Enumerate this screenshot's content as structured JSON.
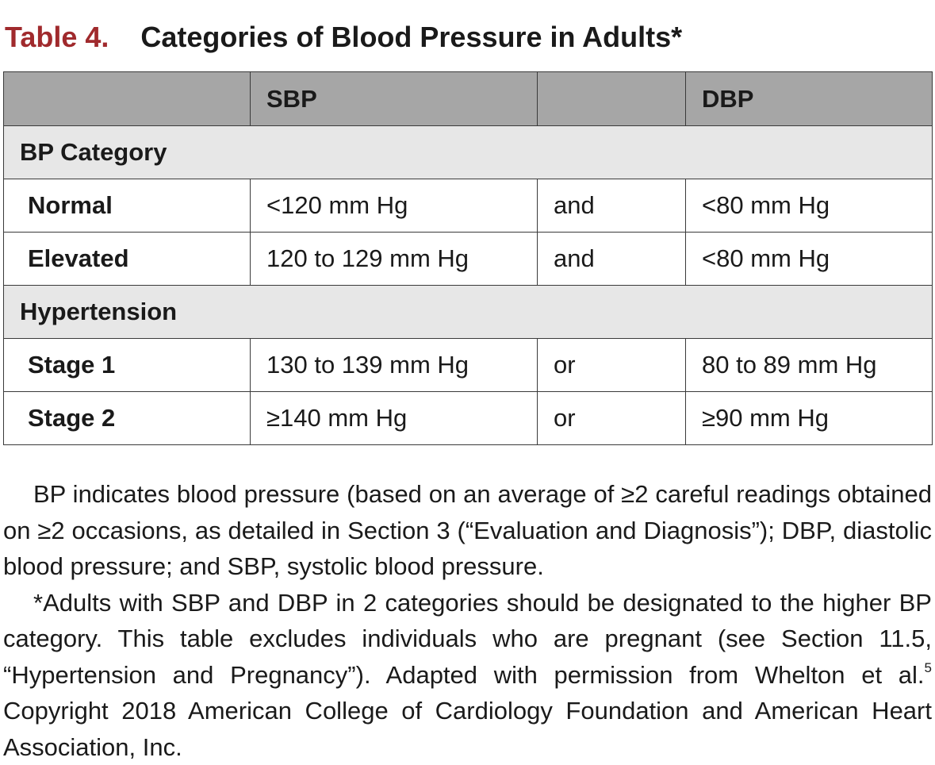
{
  "title": {
    "label": "Table 4.",
    "text": "Categories of Blood Pressure in Adults*"
  },
  "table": {
    "headers": [
      "",
      "SBP",
      "",
      "DBP"
    ],
    "sections": [
      {
        "label": "BP Category",
        "rows": [
          {
            "category": "Normal",
            "sbp": "<120 mm Hg",
            "conj": "and",
            "dbp": "<80 mm Hg"
          },
          {
            "category": "Elevated",
            "sbp": "120 to 129 mm Hg",
            "conj": "and",
            "dbp": "<80 mm Hg"
          }
        ]
      },
      {
        "label": "Hypertension",
        "rows": [
          {
            "category": "Stage 1",
            "sbp": "130 to 139 mm Hg",
            "conj": "or",
            "dbp": "80 to 89 mm Hg"
          },
          {
            "category": "Stage 2",
            "sbp": "≥140 mm Hg",
            "conj": "or",
            "dbp": "≥90 mm Hg"
          }
        ]
      }
    ]
  },
  "notes": {
    "note1": "BP indicates blood pressure (based on an average of ≥2 careful readings obtained on ≥2 occasions, as detailed in Section 3 (“Evaluation and Diagnosis”); DBP, diastolic blood pressure; and SBP, systolic blood pressure.",
    "note2_text": "*Adults with SBP and DBP in 2 categories should be designated to the higher BP category. This table excludes individuals who are pregnant (see Section 11.5, “Hypertension and Pregnancy”). Adapted with permission from Whelton et al.",
    "note2_ref": "5",
    "note2_copyright": "Copyright 2018 American College of Cardiology Foundation and American Heart Association, Inc."
  },
  "colors": {
    "title_label": "#a02a2d",
    "header_bg": "#a6a6a6",
    "section_bg": "#e7e7e7",
    "border": "#3a3a3a"
  }
}
